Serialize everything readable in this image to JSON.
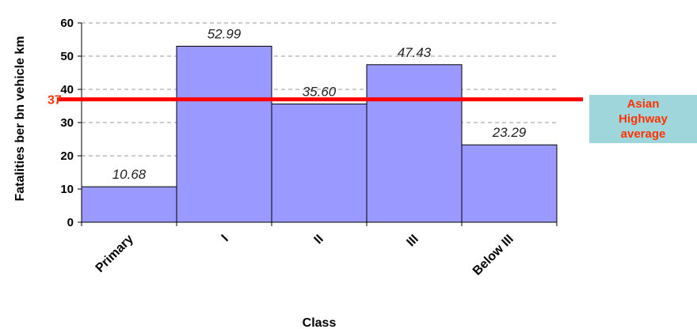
{
  "chart_data": {
    "type": "bar",
    "categories": [
      "Primary",
      "I",
      "II",
      "III",
      "Below III"
    ],
    "values": [
      10.68,
      52.99,
      35.6,
      47.43,
      23.29
    ],
    "data_labels": [
      "10.68",
      "52.99",
      "35.60",
      "47.43",
      "23.29"
    ],
    "xlabel": "Class",
    "ylabel": "Fatalities ber bn vehicle km",
    "ylim": [
      0,
      60
    ],
    "yticks": [
      0,
      10,
      20,
      30,
      40,
      50,
      60
    ],
    "grid": "horizontal dashed",
    "bar_color": "#9999ff",
    "reference_line": {
      "value": 37,
      "value_label": "37",
      "label": "Asian Highway average",
      "color": "#ff0000",
      "label_color": "#ff3300",
      "label_background": "#9fd6dc"
    }
  }
}
